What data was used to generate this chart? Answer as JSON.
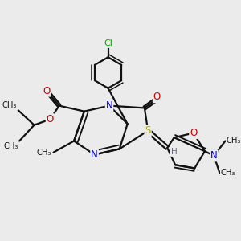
{
  "bg": "#ebebeb",
  "bc": "#111111",
  "N_color": "#0000cc",
  "O_color": "#cc0000",
  "S_color": "#b8a800",
  "Cl_color": "#00aa00",
  "H_color": "#666688",
  "lw": 1.6,
  "fs": 8.5,
  "xlim": [
    0,
    10
  ],
  "ylim": [
    0,
    10
  ]
}
